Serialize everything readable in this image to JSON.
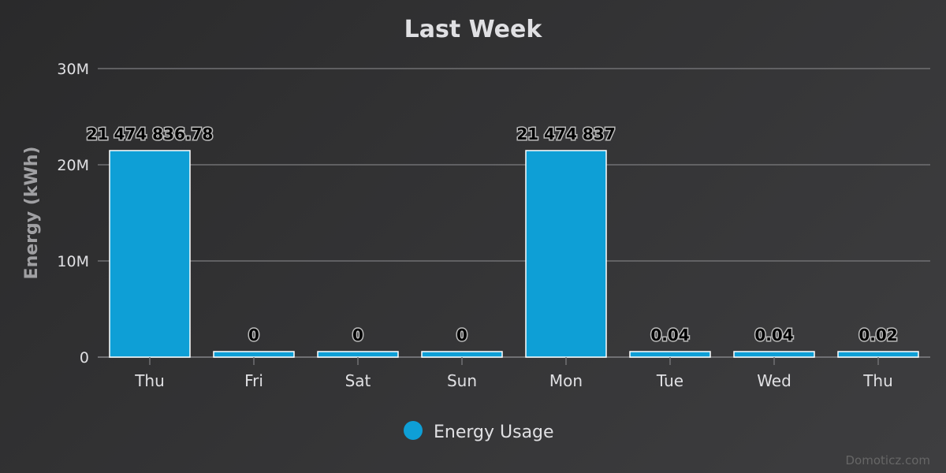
{
  "chart_data": {
    "type": "bar",
    "title": "Last Week",
    "ylabel": "Energy (kWh)",
    "xlabel": "",
    "categories": [
      "Thu",
      "Fri",
      "Sat",
      "Sun",
      "Mon",
      "Tue",
      "Wed",
      "Thu"
    ],
    "series": [
      {
        "name": "Energy Usage",
        "values": [
          21474836.78,
          0,
          0,
          0,
          21474837,
          0.04,
          0.04,
          0.02
        ],
        "labels": [
          "21 474 836.78",
          "0",
          "0",
          "0",
          "21 474 837",
          "0.04",
          "0.04",
          "0.02"
        ],
        "color": "#0e9fd6"
      }
    ],
    "yticks": [
      {
        "value": 0,
        "label": "0"
      },
      {
        "value": 10000000,
        "label": "10M"
      },
      {
        "value": 20000000,
        "label": "20M"
      },
      {
        "value": 30000000,
        "label": "30M"
      }
    ],
    "ylim": [
      0,
      30000000
    ],
    "grid": true,
    "legend_position": "bottom-center"
  },
  "credits": "Domoticz.com",
  "colors": {
    "bar": "#0e9fd6",
    "bar_border": "#ffffff",
    "grid": "#707073",
    "text": "#e0e0e3"
  }
}
